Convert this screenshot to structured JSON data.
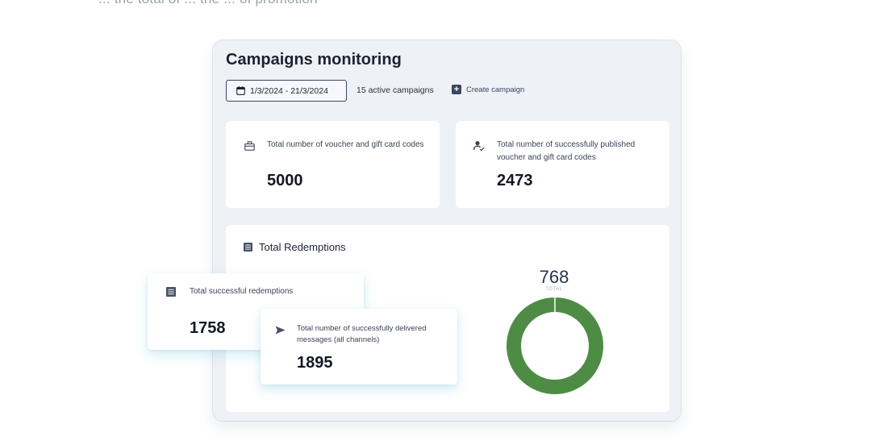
{
  "top_fragment": "... the total of ... the ... of promotion",
  "panel": {
    "title": "Campaigns monitoring",
    "date_range": "1/3/2024 - 21/3/2024",
    "active_campaigns": "15 active campaigns",
    "create_campaign": "Create campaign"
  },
  "stats": {
    "total_codes": {
      "label": "Total number of voucher and gift card codes",
      "value": "5000",
      "icon": "gift-icon"
    },
    "published_codes": {
      "label": "Total number of successfully published voucher and gift card codes",
      "value": "2473",
      "icon": "user-check-icon"
    }
  },
  "redemptions": {
    "title": "Total Redemptions",
    "icon": "list-icon",
    "donut": {
      "total": "768",
      "total_label": "TOTAL",
      "color": "#4e8c45",
      "fraction": 1.0
    },
    "successful": {
      "label": "Total successful redemptions",
      "value": "1758",
      "icon": "list-icon"
    },
    "delivered": {
      "label": "Total number of successfully delivered messages (all channels)",
      "value": "1895",
      "icon": "send-icon"
    }
  },
  "colors": {
    "accent": "#3a4566",
    "panel_bg": "#eef1f5",
    "donut": "#4e8c45"
  }
}
